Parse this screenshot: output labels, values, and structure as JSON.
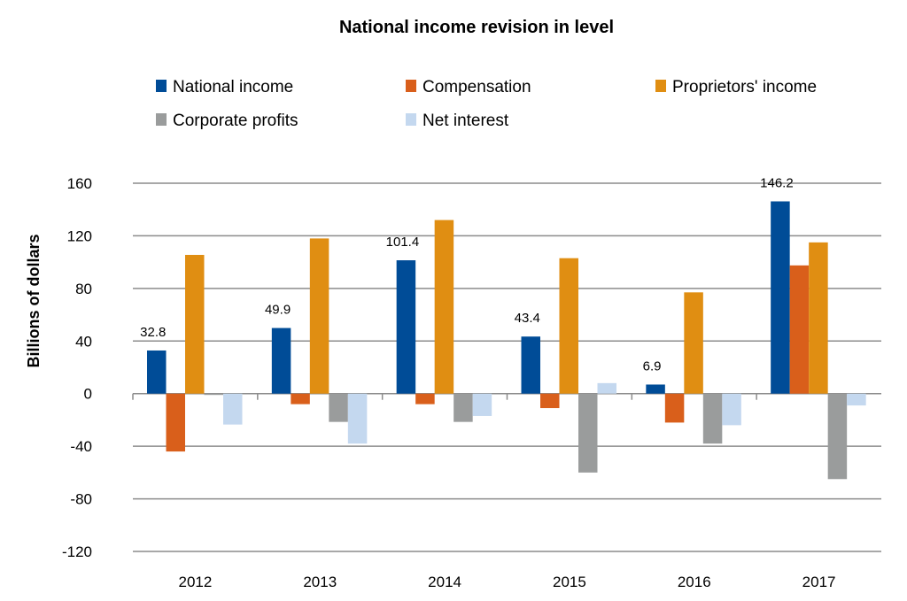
{
  "chart_data": {
    "type": "bar",
    "title": "National income revision in level",
    "xlabel": "",
    "ylabel": "Billions of dollars",
    "ylim": [
      -120,
      160
    ],
    "yticks": [
      160,
      120,
      80,
      40,
      0,
      -40,
      -80,
      -120
    ],
    "grid": true,
    "legend_placement": "top",
    "categories": [
      "2012",
      "2013",
      "2014",
      "2015",
      "2016",
      "2017"
    ],
    "series": [
      {
        "name": "National income",
        "color": "#004c97",
        "values": [
          32.8,
          49.9,
          101.4,
          43.4,
          6.9,
          146.2
        ],
        "labels": [
          "32.8",
          "49.9",
          "101.4",
          "43.4",
          "6.9",
          "146.2"
        ]
      },
      {
        "name": "Compensation",
        "color": "#d95f1b",
        "values": [
          -44,
          -8,
          -8,
          -11,
          -22,
          97.5
        ]
      },
      {
        "name": "Proprietors' income",
        "color": "#e08e12",
        "values": [
          105.5,
          118,
          132,
          103,
          77,
          115
        ]
      },
      {
        "name": "Corporate profits",
        "color": "#9a9c9c",
        "values": [
          -1,
          -21.5,
          -21.5,
          -60,
          -38,
          -65
        ]
      },
      {
        "name": "Net interest",
        "color": "#c4d8ef",
        "values": [
          -23.5,
          -38,
          -17,
          8,
          -24,
          -9
        ]
      }
    ]
  }
}
